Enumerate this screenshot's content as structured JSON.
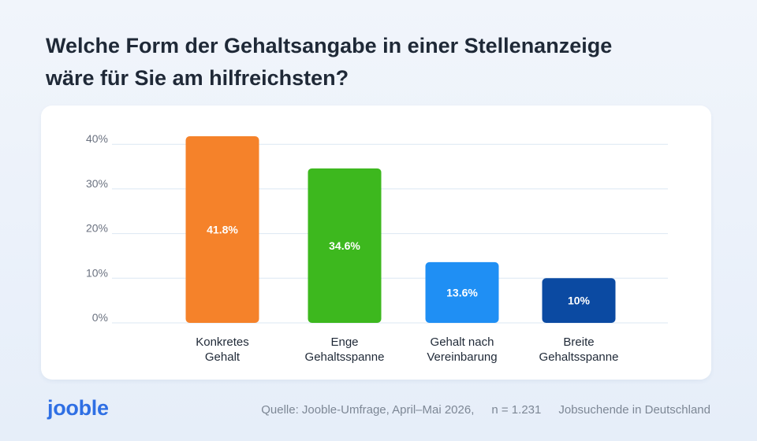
{
  "title": {
    "line1": "Welche Form der Gehaltsangabe in einer Stellenanzeige",
    "line2": "wäre für Sie am hilfreichsten?"
  },
  "colors": {
    "orange": "#f5822a",
    "green": "#3db81e",
    "light_blue": "#1f8ff4",
    "dark_blue": "#0b4aa2",
    "grid": "#dbe7f3",
    "axis_text": "#6b7280",
    "label_text": "#1f2937"
  },
  "chart_data": {
    "type": "bar",
    "categories": [
      [
        "Konkretes",
        "Gehalt"
      ],
      [
        "Enge",
        "Gehaltsspanne"
      ],
      [
        "Gehalt nach",
        "Vereinbarung"
      ],
      [
        "Breite",
        "Gehaltsspanne"
      ]
    ],
    "values": [
      41.8,
      34.6,
      13.6,
      10
    ],
    "value_labels": [
      "41.8%",
      "34.6%",
      "13.6%",
      "10%"
    ],
    "bar_colors": [
      "#f5822a",
      "#3db81e",
      "#1f8ff4",
      "#0b4aa2"
    ],
    "yticks": [
      0,
      10,
      20,
      30,
      40
    ],
    "ytick_labels": [
      "0%",
      "10%",
      "20%",
      "30%",
      "40%"
    ],
    "ylim": [
      0,
      42
    ],
    "grid": true
  },
  "footer": {
    "logo": "jooble",
    "source": "Quelle: Jooble-Umfrage, April–Mai 2026,",
    "sample": "n = 1.231",
    "population": "Jobsuchende in Deutschland"
  }
}
